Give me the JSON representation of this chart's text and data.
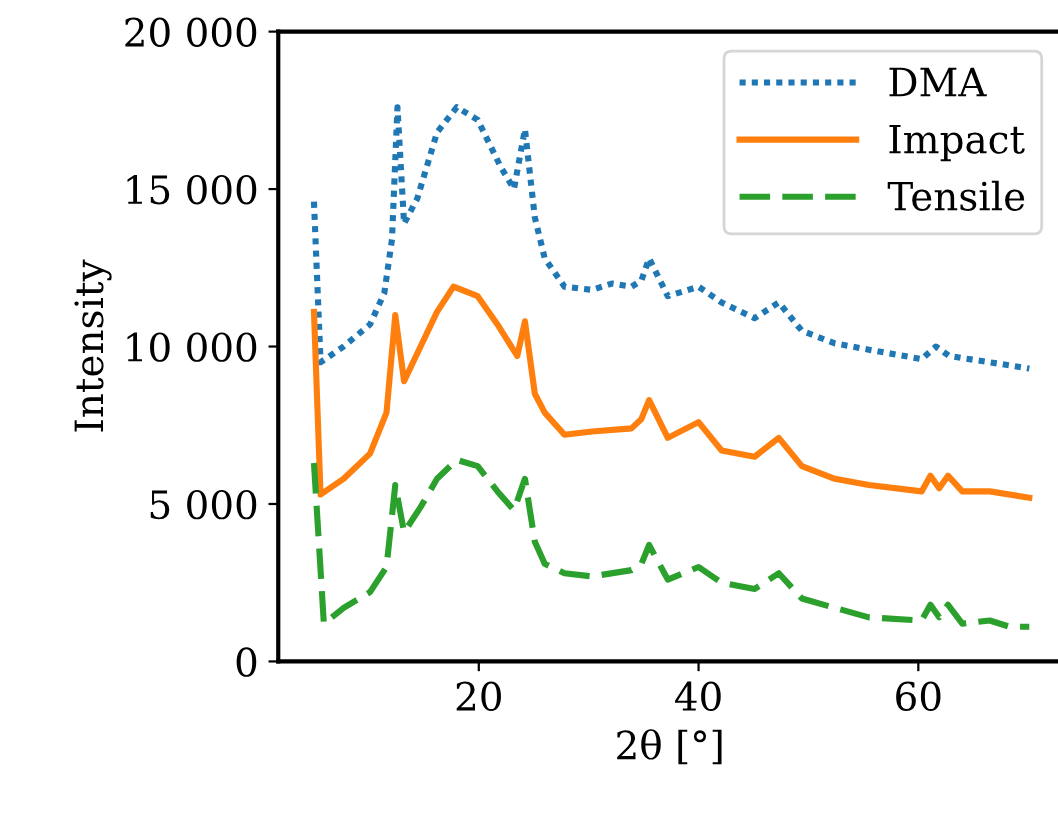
{
  "chart_data": {
    "type": "line",
    "xlabel": "2θ [°]",
    "ylabel": "Intensity",
    "xlim": [
      1.75,
      73
    ],
    "xticks": [
      20,
      40,
      60
    ],
    "ylim": [
      0,
      20000
    ],
    "yticks": [
      {
        "value": 0,
        "label": "0"
      },
      {
        "value": 5000,
        "label": "5 000"
      },
      {
        "value": 10000,
        "label": "10 000"
      },
      {
        "value": 15000,
        "label": "15 000"
      },
      {
        "value": 20000,
        "label": "20 000"
      }
    ],
    "grid": false,
    "legend": "top right",
    "series": [
      {
        "name": "DMA",
        "color": "#1f77b4",
        "line_style": "dotted",
        "x": [
          5.0,
          5.6,
          7.7,
          10.1,
          11.4,
          12.1,
          12.6,
          13.2,
          14.4,
          16.2,
          18.0,
          19.9,
          22.0,
          23.2,
          24.2,
          25.1,
          26.0,
          27.8,
          30.3,
          32.1,
          33.9,
          34.8,
          35.5,
          37.2,
          40.0,
          42.1,
          45.1,
          47.3,
          49.4,
          52.4,
          55.5,
          60.3,
          61.6,
          62.8,
          66.5,
          70.1
        ],
        "values": [
          14600,
          9500,
          10000,
          10700,
          11700,
          13400,
          17600,
          13900,
          14700,
          16800,
          17600,
          17200,
          15700,
          15000,
          16900,
          14100,
          12800,
          11900,
          11800,
          12000,
          11900,
          12100,
          12800,
          11600,
          11900,
          11400,
          10900,
          11400,
          10500,
          10100,
          9900,
          9600,
          10000,
          9700,
          9500,
          9300
        ]
      },
      {
        "name": "Impact",
        "color": "#ff7f0e",
        "line_style": "solid",
        "x": [
          5.0,
          5.6,
          7.7,
          10.1,
          11.6,
          12.4,
          13.2,
          14.7,
          16.2,
          17.7,
          19.9,
          21.7,
          23.5,
          24.2,
          25.1,
          26.0,
          27.8,
          30.3,
          33.9,
          34.8,
          35.5,
          37.2,
          40.0,
          42.1,
          45.1,
          47.3,
          49.4,
          52.4,
          55.5,
          60.3,
          61.1,
          61.9,
          62.7,
          64.0,
          66.5,
          70.1
        ],
        "values": [
          11100,
          5300,
          5800,
          6600,
          7900,
          11000,
          8900,
          10000,
          11100,
          11900,
          11600,
          10700,
          9700,
          10800,
          8500,
          7900,
          7200,
          7300,
          7400,
          7700,
          8300,
          7100,
          7600,
          6700,
          6500,
          7100,
          6200,
          5800,
          5600,
          5400,
          5900,
          5500,
          5900,
          5400,
          5400,
          5200
        ]
      },
      {
        "name": "Tensile",
        "color": "#2ca02c",
        "line_style": "dashed",
        "x": [
          5.0,
          5.9,
          7.7,
          10.1,
          11.6,
          12.4,
          13.2,
          14.7,
          16.2,
          18.0,
          19.9,
          21.7,
          23.2,
          24.2,
          25.1,
          26.0,
          27.8,
          30.3,
          33.9,
          34.8,
          35.5,
          37.2,
          40.0,
          42.1,
          45.1,
          47.3,
          49.4,
          52.4,
          55.5,
          60.3,
          61.1,
          61.9,
          62.7,
          64.0,
          66.5,
          68.3,
          70.1
        ],
        "values": [
          6300,
          1200,
          1700,
          2200,
          3000,
          5600,
          4100,
          4900,
          5800,
          6400,
          6200,
          5400,
          4800,
          5800,
          3800,
          3100,
          2800,
          2700,
          2900,
          3100,
          3700,
          2600,
          3000,
          2500,
          2300,
          2800,
          2000,
          1700,
          1400,
          1300,
          1800,
          1400,
          1800,
          1200,
          1300,
          1100,
          1100
        ]
      }
    ]
  }
}
